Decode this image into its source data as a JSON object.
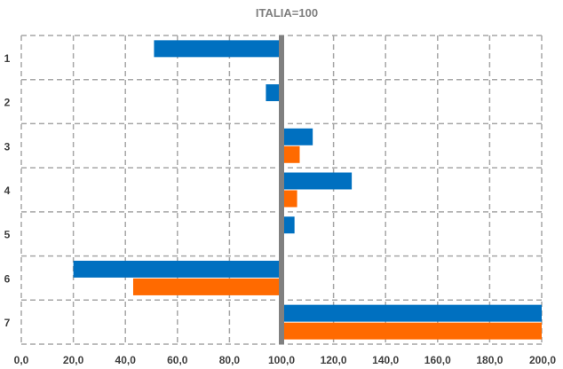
{
  "chart_data": {
    "type": "bar",
    "orientation": "horizontal",
    "title": "ITALIA=100",
    "categories": [
      "1",
      "2",
      "3",
      "4",
      "5",
      "6",
      "7"
    ],
    "baseline": 100,
    "series": [
      {
        "color": "#0070C0",
        "values": [
          51,
          94,
          112,
          127,
          105,
          20,
          200
        ]
      },
      {
        "color": "#FF6A00",
        "values": [
          null,
          null,
          107,
          106,
          null,
          43,
          200
        ]
      }
    ],
    "xlim": [
      0,
      200
    ],
    "xticks": [
      "0,0",
      "20,0",
      "40,0",
      "60,0",
      "80,0",
      "100,0",
      "120,0",
      "140,0",
      "160,0",
      "180,0",
      "200,0"
    ],
    "grid": true,
    "baseline_color": "#808080",
    "grid_color": "#A6A6A6",
    "label_color": "#404040",
    "title_color": "#7F7F7F"
  }
}
